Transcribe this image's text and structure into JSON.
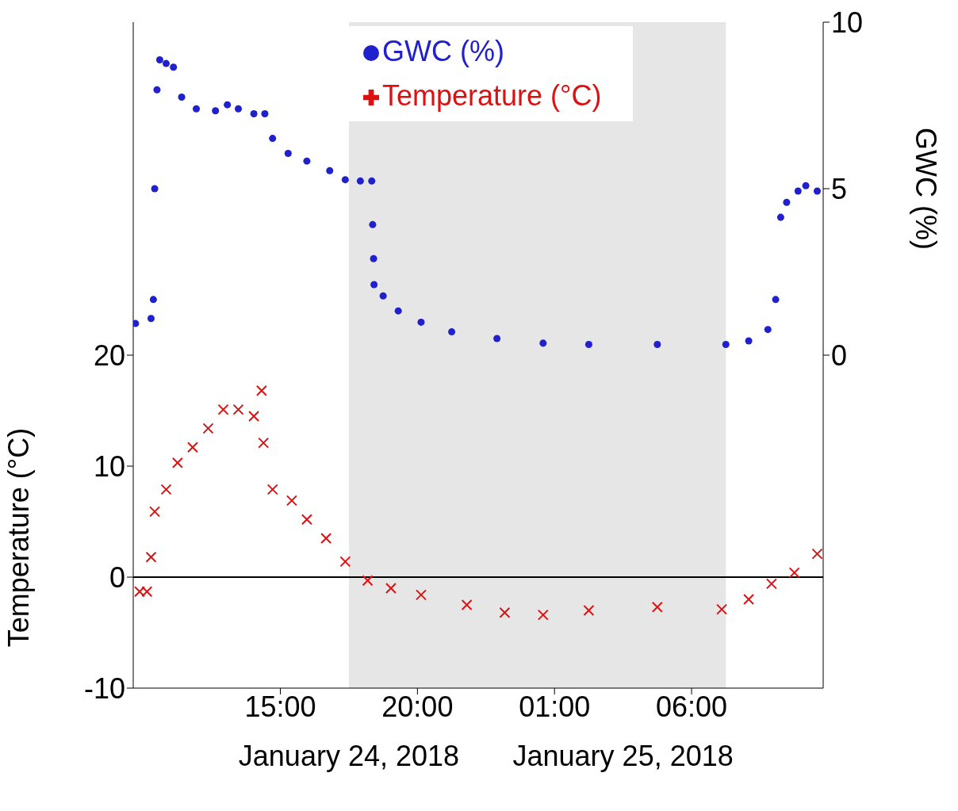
{
  "chart_data": {
    "type": "scatter",
    "ylabel": "Temperature (°C)",
    "y2label": "GWC (%)",
    "annotations": [
      "January 24, 2018",
      "January 25, 2018"
    ],
    "xlim": [
      "2018-01-24T09:38",
      "2018-01-25T10:48"
    ],
    "xticks": [
      {
        "value": "2018-01-24T15:00",
        "label": "15:00"
      },
      {
        "value": "2018-01-24T20:00",
        "label": "20:00"
      },
      {
        "value": "2018-01-25T01:00",
        "label": "01:00"
      },
      {
        "value": "2018-01-25T06:00",
        "label": "06:00"
      }
    ],
    "ylim": [
      -10,
      50
    ],
    "yticks": [
      -10,
      0,
      10,
      20
    ],
    "y2lim": [
      -10,
      10
    ],
    "y2ticks": [
      0,
      5,
      10
    ],
    "legend": "top",
    "bands": [
      {
        "axis": "x",
        "from": "2018-01-24T17:30",
        "to": "2018-01-25T07:15",
        "color": "#e6e6e6"
      }
    ],
    "ref_lines": [
      {
        "axis": "y",
        "value": 0,
        "color": "#000000"
      }
    ],
    "series": [
      {
        "name": "GWC (%)",
        "axis": "y2",
        "marker": "circle",
        "color": "#2020cc",
        "x": [
          "2018-01-24T09:43",
          "2018-01-24T10:17",
          "2018-01-24T10:22",
          "2018-01-24T10:25",
          "2018-01-24T10:30",
          "2018-01-24T10:36",
          "2018-01-24T10:50",
          "2018-01-24T11:06",
          "2018-01-24T11:24",
          "2018-01-24T11:56",
          "2018-01-24T12:38",
          "2018-01-24T13:04",
          "2018-01-24T13:28",
          "2018-01-24T14:02",
          "2018-01-24T14:26",
          "2018-01-24T14:43",
          "2018-01-24T15:17",
          "2018-01-24T15:58",
          "2018-01-24T16:48",
          "2018-01-24T17:22",
          "2018-01-24T17:55",
          "2018-01-24T18:20",
          "2018-01-24T18:22",
          "2018-01-24T18:24",
          "2018-01-24T18:25",
          "2018-01-24T18:45",
          "2018-01-24T19:18",
          "2018-01-24T20:08",
          "2018-01-24T21:15",
          "2018-01-24T22:54",
          "2018-01-25T00:35",
          "2018-01-25T02:15",
          "2018-01-25T04:45",
          "2018-01-25T07:15",
          "2018-01-25T08:05",
          "2018-01-25T08:47",
          "2018-01-25T09:04",
          "2018-01-25T09:15",
          "2018-01-25T09:28",
          "2018-01-25T09:53",
          "2018-01-25T10:10",
          "2018-01-25T10:35"
        ],
        "values": [
          0.95,
          1.1,
          1.67,
          5.0,
          7.97,
          8.87,
          8.76,
          8.65,
          7.75,
          7.4,
          7.34,
          7.52,
          7.4,
          7.25,
          7.25,
          6.51,
          6.06,
          5.83,
          5.54,
          5.27,
          5.23,
          5.23,
          3.92,
          2.9,
          2.12,
          1.78,
          1.33,
          0.99,
          0.7,
          0.5,
          0.36,
          0.32,
          0.32,
          0.32,
          0.43,
          0.77,
          1.67,
          4.14,
          4.59,
          4.93,
          5.09,
          4.93
        ]
      },
      {
        "name": "Temperature (°C)",
        "axis": "y",
        "marker": "cross",
        "color": "#dd1111",
        "x": [
          "2018-01-24T09:52",
          "2018-01-24T10:08",
          "2018-01-24T10:17",
          "2018-01-24T10:25",
          "2018-01-24T10:50",
          "2018-01-24T11:15",
          "2018-01-24T11:48",
          "2018-01-24T12:22",
          "2018-01-24T12:55",
          "2018-01-24T13:28",
          "2018-01-24T14:02",
          "2018-01-24T14:19",
          "2018-01-24T14:23",
          "2018-01-24T14:43",
          "2018-01-24T15:25",
          "2018-01-24T15:58",
          "2018-01-24T16:40",
          "2018-01-24T17:22",
          "2018-01-24T18:11",
          "2018-01-24T19:02",
          "2018-01-24T20:08",
          "2018-01-24T21:48",
          "2018-01-24T23:11",
          "2018-01-25T00:35",
          "2018-01-25T02:15",
          "2018-01-25T04:45",
          "2018-01-25T07:06",
          "2018-01-25T08:05",
          "2018-01-25T08:55",
          "2018-01-25T09:45",
          "2018-01-25T10:35"
        ],
        "values": [
          -1.3,
          -1.3,
          1.8,
          5.9,
          7.9,
          10.3,
          11.7,
          13.4,
          15.1,
          15.1,
          14.5,
          16.8,
          12.1,
          7.9,
          6.9,
          5.2,
          3.5,
          1.4,
          -0.3,
          -1.0,
          -1.6,
          -2.5,
          -3.2,
          -3.4,
          -3.0,
          -2.7,
          -2.9,
          -2.0,
          -0.6,
          0.4,
          2.1
        ]
      }
    ]
  }
}
